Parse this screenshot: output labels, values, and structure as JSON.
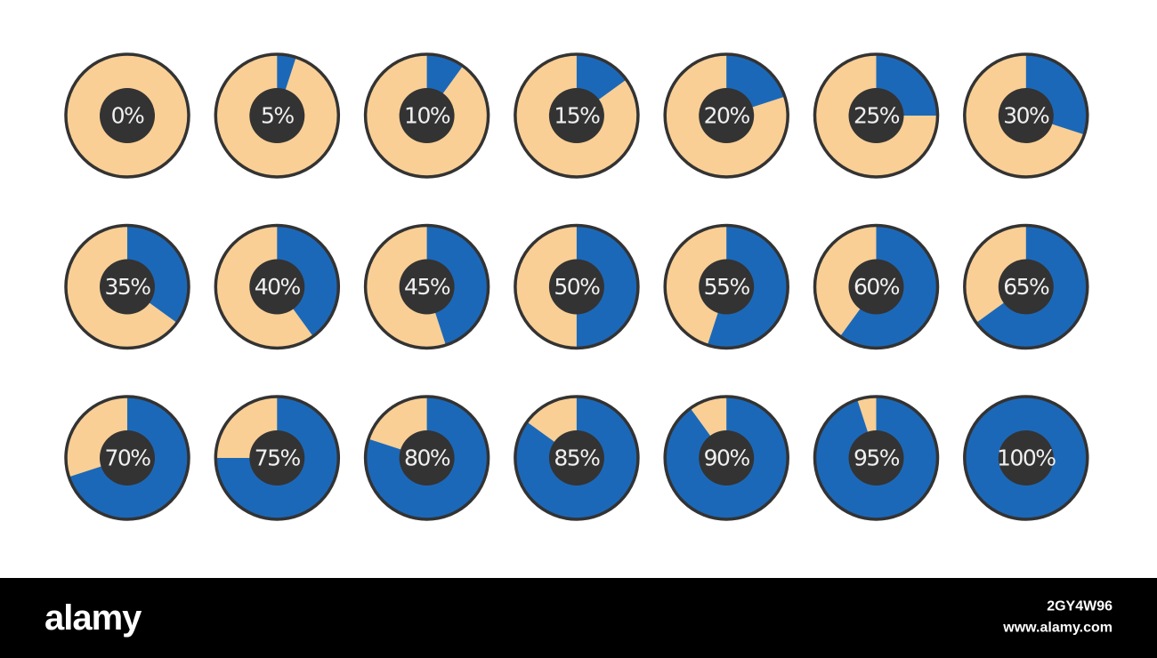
{
  "chart_data": [
    {
      "type": "pie",
      "values": [
        0
      ],
      "value_labels": [
        "0%"
      ],
      "color": "#1c68b8",
      "background": "#f9cf95"
    },
    {
      "type": "pie",
      "values": [
        5
      ],
      "value_labels": [
        "5%"
      ],
      "color": "#1c68b8",
      "background": "#f9cf95"
    },
    {
      "type": "pie",
      "values": [
        10
      ],
      "value_labels": [
        "10%"
      ],
      "color": "#1c68b8",
      "background": "#f9cf95"
    },
    {
      "type": "pie",
      "values": [
        15
      ],
      "value_labels": [
        "15%"
      ],
      "color": "#1c68b8",
      "background": "#f9cf95"
    },
    {
      "type": "pie",
      "values": [
        20
      ],
      "value_labels": [
        "20%"
      ],
      "color": "#1c68b8",
      "background": "#f9cf95"
    },
    {
      "type": "pie",
      "values": [
        25
      ],
      "value_labels": [
        "25%"
      ],
      "color": "#1c68b8",
      "background": "#f9cf95"
    },
    {
      "type": "pie",
      "values": [
        30
      ],
      "value_labels": [
        "30%"
      ],
      "color": "#1c68b8",
      "background": "#f9cf95"
    },
    {
      "type": "pie",
      "values": [
        35
      ],
      "value_labels": [
        "35%"
      ],
      "color": "#1c68b8",
      "background": "#f9cf95"
    },
    {
      "type": "pie",
      "values": [
        40
      ],
      "value_labels": [
        "40%"
      ],
      "color": "#1c68b8",
      "background": "#f9cf95"
    },
    {
      "type": "pie",
      "values": [
        45
      ],
      "value_labels": [
        "45%"
      ],
      "color": "#1c68b8",
      "background": "#f9cf95"
    },
    {
      "type": "pie",
      "values": [
        50
      ],
      "value_labels": [
        "50%"
      ],
      "color": "#1c68b8",
      "background": "#f9cf95"
    },
    {
      "type": "pie",
      "values": [
        55
      ],
      "value_labels": [
        "55%"
      ],
      "color": "#1c68b8",
      "background": "#f9cf95"
    },
    {
      "type": "pie",
      "values": [
        60
      ],
      "value_labels": [
        "60%"
      ],
      "color": "#1c68b8",
      "background": "#f9cf95"
    },
    {
      "type": "pie",
      "values": [
        65
      ],
      "value_labels": [
        "65%"
      ],
      "color": "#1c68b8",
      "background": "#f9cf95"
    },
    {
      "type": "pie",
      "values": [
        70
      ],
      "value_labels": [
        "70%"
      ],
      "color": "#1c68b8",
      "background": "#f9cf95"
    },
    {
      "type": "pie",
      "values": [
        75
      ],
      "value_labels": [
        "75%"
      ],
      "color": "#1c68b8",
      "background": "#f9cf95"
    },
    {
      "type": "pie",
      "values": [
        80
      ],
      "value_labels": [
        "80%"
      ],
      "color": "#1c68b8",
      "background": "#f9cf95"
    },
    {
      "type": "pie",
      "values": [
        85
      ],
      "value_labels": [
        "85%"
      ],
      "color": "#1c68b8",
      "background": "#f9cf95"
    },
    {
      "type": "pie",
      "values": [
        90
      ],
      "value_labels": [
        "90%"
      ],
      "color": "#1c68b8",
      "background": "#f9cf95"
    },
    {
      "type": "pie",
      "values": [
        95
      ],
      "value_labels": [
        "95%"
      ],
      "color": "#1c68b8",
      "background": "#f9cf95"
    },
    {
      "type": "pie",
      "values": [
        100
      ],
      "value_labels": [
        "100%"
      ],
      "color": "#1c68b8",
      "background": "#f9cf95"
    }
  ],
  "footer": {
    "logo": "alamy",
    "image_id": "2GY4W96",
    "url": "www.alamy.com"
  }
}
